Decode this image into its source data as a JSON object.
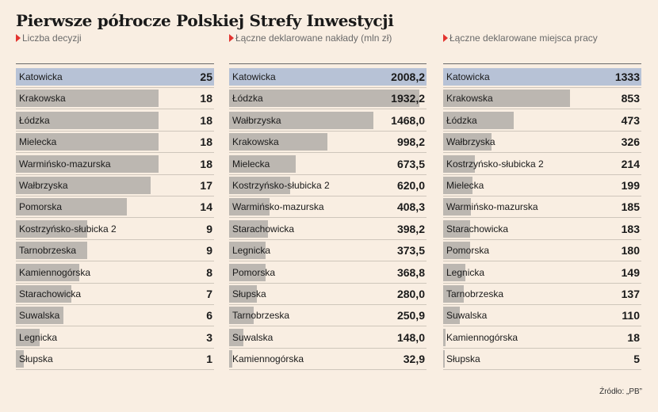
{
  "title": "Pierwsze półrocze Polskiej Strefy Inwestycji",
  "source": "Źródło: „PB”",
  "chart_data": [
    {
      "type": "bar",
      "orientation": "horizontal",
      "title": "Liczba decyzji",
      "categories": [
        "Katowicka",
        "Krakowska",
        "Łódzka",
        "Mielecka",
        "Warmińsko-mazurska",
        "Wałbrzyska",
        "Pomorska",
        "Kostrzyńsko-słubicka 2",
        "Tarnobrzeska",
        "Kamiennogórska",
        "Starachowicka",
        "Suwalska",
        "Legnicka",
        "Słupska"
      ],
      "values": [
        25,
        18,
        18,
        18,
        18,
        17,
        14,
        9,
        9,
        8,
        7,
        6,
        3,
        1
      ],
      "display": [
        "25",
        "18",
        "18",
        "18",
        "18",
        "17",
        "14",
        "9",
        "9",
        "8",
        "7",
        "6",
        "3",
        "1"
      ],
      "highlight": "Katowicka",
      "colors": {
        "highlight": "#b7c2d6",
        "bar": "#bcb7b1"
      }
    },
    {
      "type": "bar",
      "orientation": "horizontal",
      "title": "Łączne deklarowane nakłady (mln zł)",
      "categories": [
        "Katowicka",
        "Łódzka",
        "Wałbrzyska",
        "Krakowska",
        "Mielecka",
        "Kostrzyńsko-słubicka 2",
        "Warmińsko-mazurska",
        "Starachowicka",
        "Legnicka",
        "Pomorska",
        "Słupska",
        "Tarnobrzeska",
        "Suwalska",
        "Kamiennogórska"
      ],
      "values": [
        2008.2,
        1932.2,
        1468.0,
        998.2,
        673.5,
        620.0,
        408.3,
        398.2,
        373.5,
        368.8,
        280.0,
        250.9,
        148.0,
        32.9
      ],
      "display": [
        "2008,2",
        "1932,2",
        "1468,0",
        "998,2",
        "673,5",
        "620,0",
        "408,3",
        "398,2",
        "373,5",
        "368,8",
        "280,0",
        "250,9",
        "148,0",
        "32,9"
      ],
      "highlight": "Katowicka",
      "colors": {
        "highlight": "#b7c2d6",
        "bar": "#bcb7b1"
      }
    },
    {
      "type": "bar",
      "orientation": "horizontal",
      "title": "Łączne deklarowane miejsca pracy",
      "categories": [
        "Katowicka",
        "Krakowska",
        "Łódzka",
        "Wałbrzyska",
        "Kostrzyńsko-słubicka 2",
        "Mielecka",
        "Warmińsko-mazurska",
        "Starachowicka",
        "Pomorska",
        "Legnicka",
        "Tarnobrzeska",
        "Suwalska",
        "Kamiennogórska",
        "Słupska"
      ],
      "values": [
        1333,
        853,
        473,
        326,
        214,
        199,
        185,
        183,
        180,
        149,
        137,
        110,
        18,
        5
      ],
      "display": [
        "1333",
        "853",
        "473",
        "326",
        "214",
        "199",
        "185",
        "183",
        "180",
        "149",
        "137",
        "110",
        "18",
        "5"
      ],
      "highlight": "Katowicka",
      "colors": {
        "highlight": "#b7c2d6",
        "bar": "#bcb7b1"
      }
    }
  ]
}
